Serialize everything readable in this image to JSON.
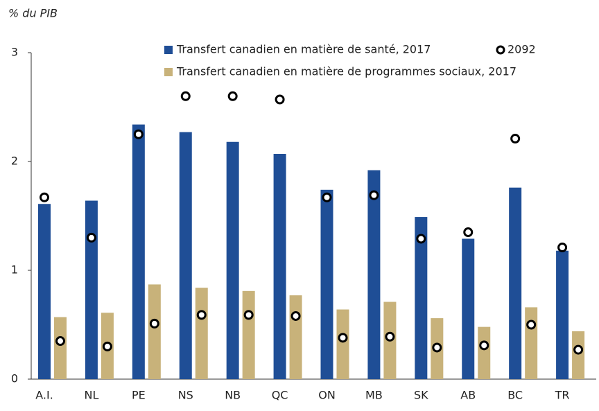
{
  "chart_data": {
    "type": "bar",
    "y_axis_label": "% du PIB",
    "categories": [
      "A.I.",
      "NL",
      "PE",
      "NS",
      "NB",
      "QC",
      "ON",
      "MB",
      "SK",
      "AB",
      "BC",
      "TR"
    ],
    "series": [
      {
        "name": "Transfert canadien en matière de santé, 2017",
        "color": "#1f4e96",
        "values": [
          1.61,
          1.64,
          2.34,
          2.27,
          2.18,
          2.07,
          1.74,
          1.92,
          1.49,
          1.29,
          1.76,
          1.18
        ],
        "projection_2092": [
          1.67,
          1.3,
          2.25,
          2.6,
          2.6,
          2.57,
          1.67,
          1.69,
          1.29,
          1.35,
          2.21,
          1.21
        ]
      },
      {
        "name": "Transfert canadien en matière de programmes sociaux, 2017",
        "color": "#c8b27a",
        "values": [
          0.57,
          0.61,
          0.87,
          0.84,
          0.81,
          0.77,
          0.64,
          0.71,
          0.56,
          0.48,
          0.66,
          0.44
        ],
        "projection_2092": [
          0.35,
          0.3,
          0.51,
          0.59,
          0.59,
          0.58,
          0.38,
          0.39,
          0.29,
          0.31,
          0.5,
          0.27
        ]
      }
    ],
    "projection_label": "2092",
    "ylim": [
      0,
      3
    ],
    "yticks": [
      0,
      1,
      2,
      3
    ],
    "grid": false
  }
}
